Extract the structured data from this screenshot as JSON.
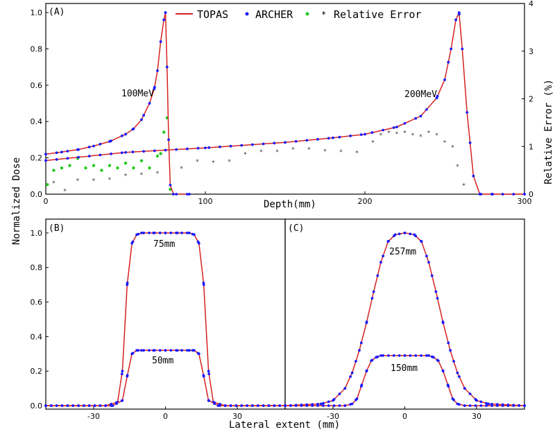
{
  "chart_data": [
    {
      "panel": "(A)",
      "type": "line",
      "xlabel": "Depth(mm)",
      "ylabel": "Normalized Dose",
      "y2label": "Relative Error (%)",
      "xlim": [
        0,
        300
      ],
      "ylim": [
        0,
        1.05
      ],
      "y2lim": [
        0,
        4
      ],
      "xticks": [
        "0",
        "100",
        "200",
        "300"
      ],
      "yticks": [
        "0.0",
        "0.2",
        "0.4",
        "0.6",
        "0.8",
        "1.0"
      ],
      "y2ticks": [
        "0",
        "1",
        "2",
        "3",
        "4"
      ],
      "legend": [
        "TOPAS",
        "ARCHER",
        "Relative Error"
      ],
      "legend_position": "top",
      "annotations": [
        "100MeV",
        "200MeV"
      ],
      "series": [
        {
          "name": "TOPAS",
          "color": "#d62020",
          "x": [
            0,
            10,
            20,
            30,
            40,
            50,
            55,
            60,
            65,
            68,
            70,
            72,
            74,
            75,
            76,
            77,
            78,
            80,
            90
          ],
          "y": [
            0.22,
            0.232,
            0.245,
            0.265,
            0.29,
            0.33,
            0.36,
            0.41,
            0.5,
            0.58,
            0.68,
            0.84,
            0.96,
            1.0,
            0.7,
            0.3,
            0.05,
            0.0,
            0.0
          ]
        },
        {
          "name": "TOPAS",
          "color": "#d62020",
          "x": [
            0,
            50,
            100,
            150,
            180,
            200,
            220,
            235,
            245,
            250,
            254,
            257,
            259,
            261,
            264,
            268,
            272,
            280,
            300
          ],
          "y": [
            0.185,
            0.23,
            0.255,
            0.285,
            0.31,
            0.33,
            0.37,
            0.43,
            0.53,
            0.63,
            0.8,
            0.96,
            1.0,
            0.8,
            0.45,
            0.1,
            0.0,
            0.0,
            0.0
          ]
        },
        {
          "name": "Relative Error",
          "color": "#22cc22",
          "x": [
            1,
            5,
            10,
            15,
            20,
            25,
            30,
            35,
            40,
            45,
            50,
            55,
            60,
            65,
            70,
            72,
            74,
            76,
            78
          ],
          "y": [
            0.2,
            0.5,
            0.55,
            0.6,
            0.75,
            0.55,
            0.6,
            0.5,
            0.6,
            0.55,
            0.65,
            0.55,
            0.7,
            0.55,
            0.8,
            0.85,
            1.3,
            1.6,
            0.1
          ]
        },
        {
          "name": "Relative Error",
          "color": "#333333",
          "x": [
            5,
            12,
            20,
            30,
            40,
            50,
            60,
            70,
            85,
            95,
            105,
            115,
            125,
            135,
            145,
            155,
            165,
            175,
            185,
            195,
            205,
            210,
            215,
            220,
            225,
            230,
            235,
            240,
            245,
            250,
            255,
            258,
            262
          ],
          "y": [
            0.25,
            0.08,
            0.3,
            0.3,
            0.32,
            0.4,
            0.42,
            0.45,
            0.55,
            0.7,
            0.68,
            0.7,
            0.85,
            0.9,
            0.9,
            0.95,
            0.95,
            0.92,
            0.9,
            0.88,
            1.1,
            1.25,
            1.3,
            1.28,
            1.3,
            1.25,
            1.22,
            1.3,
            1.25,
            1.1,
            1.0,
            0.6,
            0.2
          ]
        }
      ]
    },
    {
      "panel": "(B)",
      "type": "line",
      "xlabel": "Lateral extent (mm)",
      "ylabel": "Normalized Dose",
      "xlim": [
        -50,
        50
      ],
      "ylim": [
        -0.02,
        1.08
      ],
      "xticks": [
        "-30",
        "0",
        "30"
      ],
      "yticks": [
        "0.0",
        "0.2",
        "0.4",
        "0.6",
        "0.8",
        "1.0"
      ],
      "annotations": [
        "75mm",
        "50mm"
      ],
      "series": [
        {
          "name": "TOPAS",
          "color": "#d62020",
          "x": [
            -50,
            -25,
            -20,
            -18,
            -16,
            -14,
            -12,
            -10,
            -5,
            0,
            5,
            10,
            12,
            14,
            16,
            18,
            20,
            25,
            50
          ],
          "y": [
            0.0,
            0.0,
            0.02,
            0.2,
            0.7,
            0.94,
            0.99,
            1.0,
            1.0,
            1.0,
            1.0,
            1.0,
            0.99,
            0.94,
            0.7,
            0.2,
            0.02,
            0.0,
            0.0
          ]
        },
        {
          "name": "TOPAS",
          "color": "#d62020",
          "x": [
            -50,
            -22,
            -18,
            -16,
            -14,
            -12,
            -10,
            -5,
            0,
            5,
            10,
            12,
            14,
            16,
            18,
            22,
            50
          ],
          "y": [
            0.0,
            0.0,
            0.03,
            0.17,
            0.3,
            0.32,
            0.32,
            0.32,
            0.32,
            0.32,
            0.32,
            0.32,
            0.3,
            0.17,
            0.03,
            0.0,
            0.0
          ]
        }
      ]
    },
    {
      "panel": "(C)",
      "type": "line",
      "xlabel": "Lateral extent (mm)",
      "ylabel": "Normalized Dose",
      "xlim": [
        -50,
        50
      ],
      "ylim": [
        -0.02,
        1.08
      ],
      "xticks": [
        "-30",
        "0",
        "30"
      ],
      "annotations": [
        "257mm",
        "150mm"
      ],
      "series": [
        {
          "name": "TOPAS",
          "color": "#d62020",
          "x": [
            -50,
            -35,
            -30,
            -25,
            -22,
            -19,
            -16,
            -13,
            -10,
            -7,
            -4,
            0,
            4,
            7,
            10,
            13,
            16,
            19,
            22,
            25,
            30,
            35,
            50
          ],
          "y": [
            0.0,
            0.01,
            0.03,
            0.1,
            0.19,
            0.32,
            0.48,
            0.66,
            0.83,
            0.95,
            0.99,
            1.0,
            0.99,
            0.95,
            0.83,
            0.66,
            0.48,
            0.32,
            0.19,
            0.1,
            0.03,
            0.01,
            0.0
          ]
        },
        {
          "name": "TOPAS",
          "color": "#d62020",
          "x": [
            -50,
            -25,
            -22,
            -20,
            -18,
            -16,
            -14,
            -12,
            -10,
            0,
            10,
            12,
            14,
            16,
            18,
            20,
            22,
            25,
            50
          ],
          "y": [
            0.0,
            0.0,
            0.01,
            0.04,
            0.12,
            0.2,
            0.26,
            0.28,
            0.29,
            0.29,
            0.29,
            0.28,
            0.26,
            0.2,
            0.12,
            0.04,
            0.01,
            0.0,
            0.0
          ]
        }
      ]
    }
  ]
}
